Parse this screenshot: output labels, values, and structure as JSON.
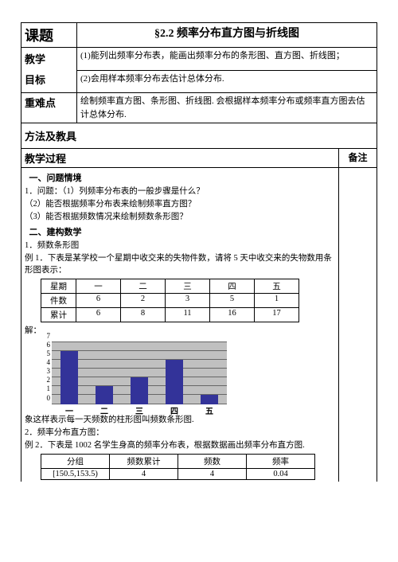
{
  "headerRow": {
    "label": "课题",
    "title": "§2.2 频率分布直方图与折线图"
  },
  "goalRow": {
    "label": "教学\n目标",
    "line1": "(1)能列出频率分布表，能画出频率分布的条形图、直方图、折线图；",
    "line2": "(2)会用样本频率分布去估计总体分布."
  },
  "diffRow": {
    "label": "重难点",
    "text": "绘制频率直方图、条形图、折线图. 会根据样本频率分布或频率直方图去估计总体分布."
  },
  "methodRow": {
    "label": "方法及教具"
  },
  "procHeader": {
    "label": "教学过程",
    "remark": "备注"
  },
  "sections": {
    "s1": "一、问题情境",
    "q1a": "1．问题：（1）列频率分布表的一般步骤是什么？",
    "q1b": "（2）能否根据频率分布表来绘制频率直方图？",
    "q1c": "（3）能否根据频数情况来绘制频数条形图？",
    "s2": "二、建构数学",
    "s2a": "1．频数条形图",
    "ex1": "例 1．下表是某学校一个星期中收交来的失物件数，请将 5 天中收交来的失物数用条形图表示：",
    "jie": "解：",
    "afterChart": "象这样表示每一天频数的柱形图叫频数条形图.",
    "s2b": "2．频率分布直方图：",
    "ex2": "例 2．下表是 1002 名学生身高的频率分布表，根据数据画出频率分布直方图."
  },
  "table1": {
    "headers": [
      "星期",
      "一",
      "二",
      "三",
      "四",
      "五"
    ],
    "row1": [
      "件数",
      "6",
      "2",
      "3",
      "5",
      "1"
    ],
    "row2": [
      "累计",
      "6",
      "8",
      "11",
      "16",
      "17"
    ]
  },
  "chart": {
    "background": "#c0c0c0",
    "bar_color": "#333399",
    "grid_color": "#666666",
    "yticks": [
      0,
      1,
      2,
      3,
      4,
      5,
      6,
      7
    ],
    "ymax": 7,
    "categories": [
      "一",
      "二",
      "三",
      "四",
      "五"
    ],
    "values": [
      6,
      2,
      3,
      5,
      1
    ]
  },
  "table2": {
    "headers": [
      "分组",
      "频数累计",
      "频数",
      "频率"
    ],
    "row1": [
      "[150.5,153.5)",
      "4",
      "4",
      "0.04"
    ]
  }
}
